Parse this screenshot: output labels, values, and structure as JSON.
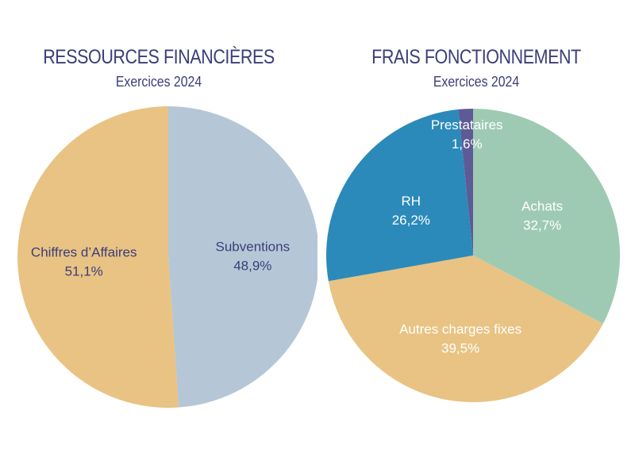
{
  "chart_data": [
    {
      "type": "pie",
      "title": "RESSOURCES FINANCIÈRES",
      "subtitle": "Exercices 2024",
      "slices": [
        {
          "label": "Subventions",
          "value": 48.9,
          "value_label": "48,9%",
          "color": "#b5c7d6",
          "text_color": "#3c3d7a"
        },
        {
          "label": "Chiffres d’Affaires",
          "value": 51.1,
          "value_label": "51,1%",
          "color": "#e8c383",
          "text_color": "#3c3d7a"
        }
      ]
    },
    {
      "type": "pie",
      "title": "FRAIS FONCTIONNEMENT",
      "subtitle": "Exercices 2024",
      "slices": [
        {
          "label": "Achats",
          "value": 32.7,
          "value_label": "32,7%",
          "color": "#9ecab4",
          "text_color": "#ffffff"
        },
        {
          "label": "Autres charges fixes",
          "value": 39.5,
          "value_label": "39,5%",
          "color": "#e8c383",
          "text_color": "#ffffff"
        },
        {
          "label": "RH",
          "value": 26.2,
          "value_label": "26,2%",
          "color": "#2b8ab9",
          "text_color": "#ffffff"
        },
        {
          "label": "Prestataires",
          "value": 1.6,
          "value_label": "1,6%",
          "color": "#5d5a96",
          "text_color": "#ffffff"
        }
      ]
    }
  ]
}
